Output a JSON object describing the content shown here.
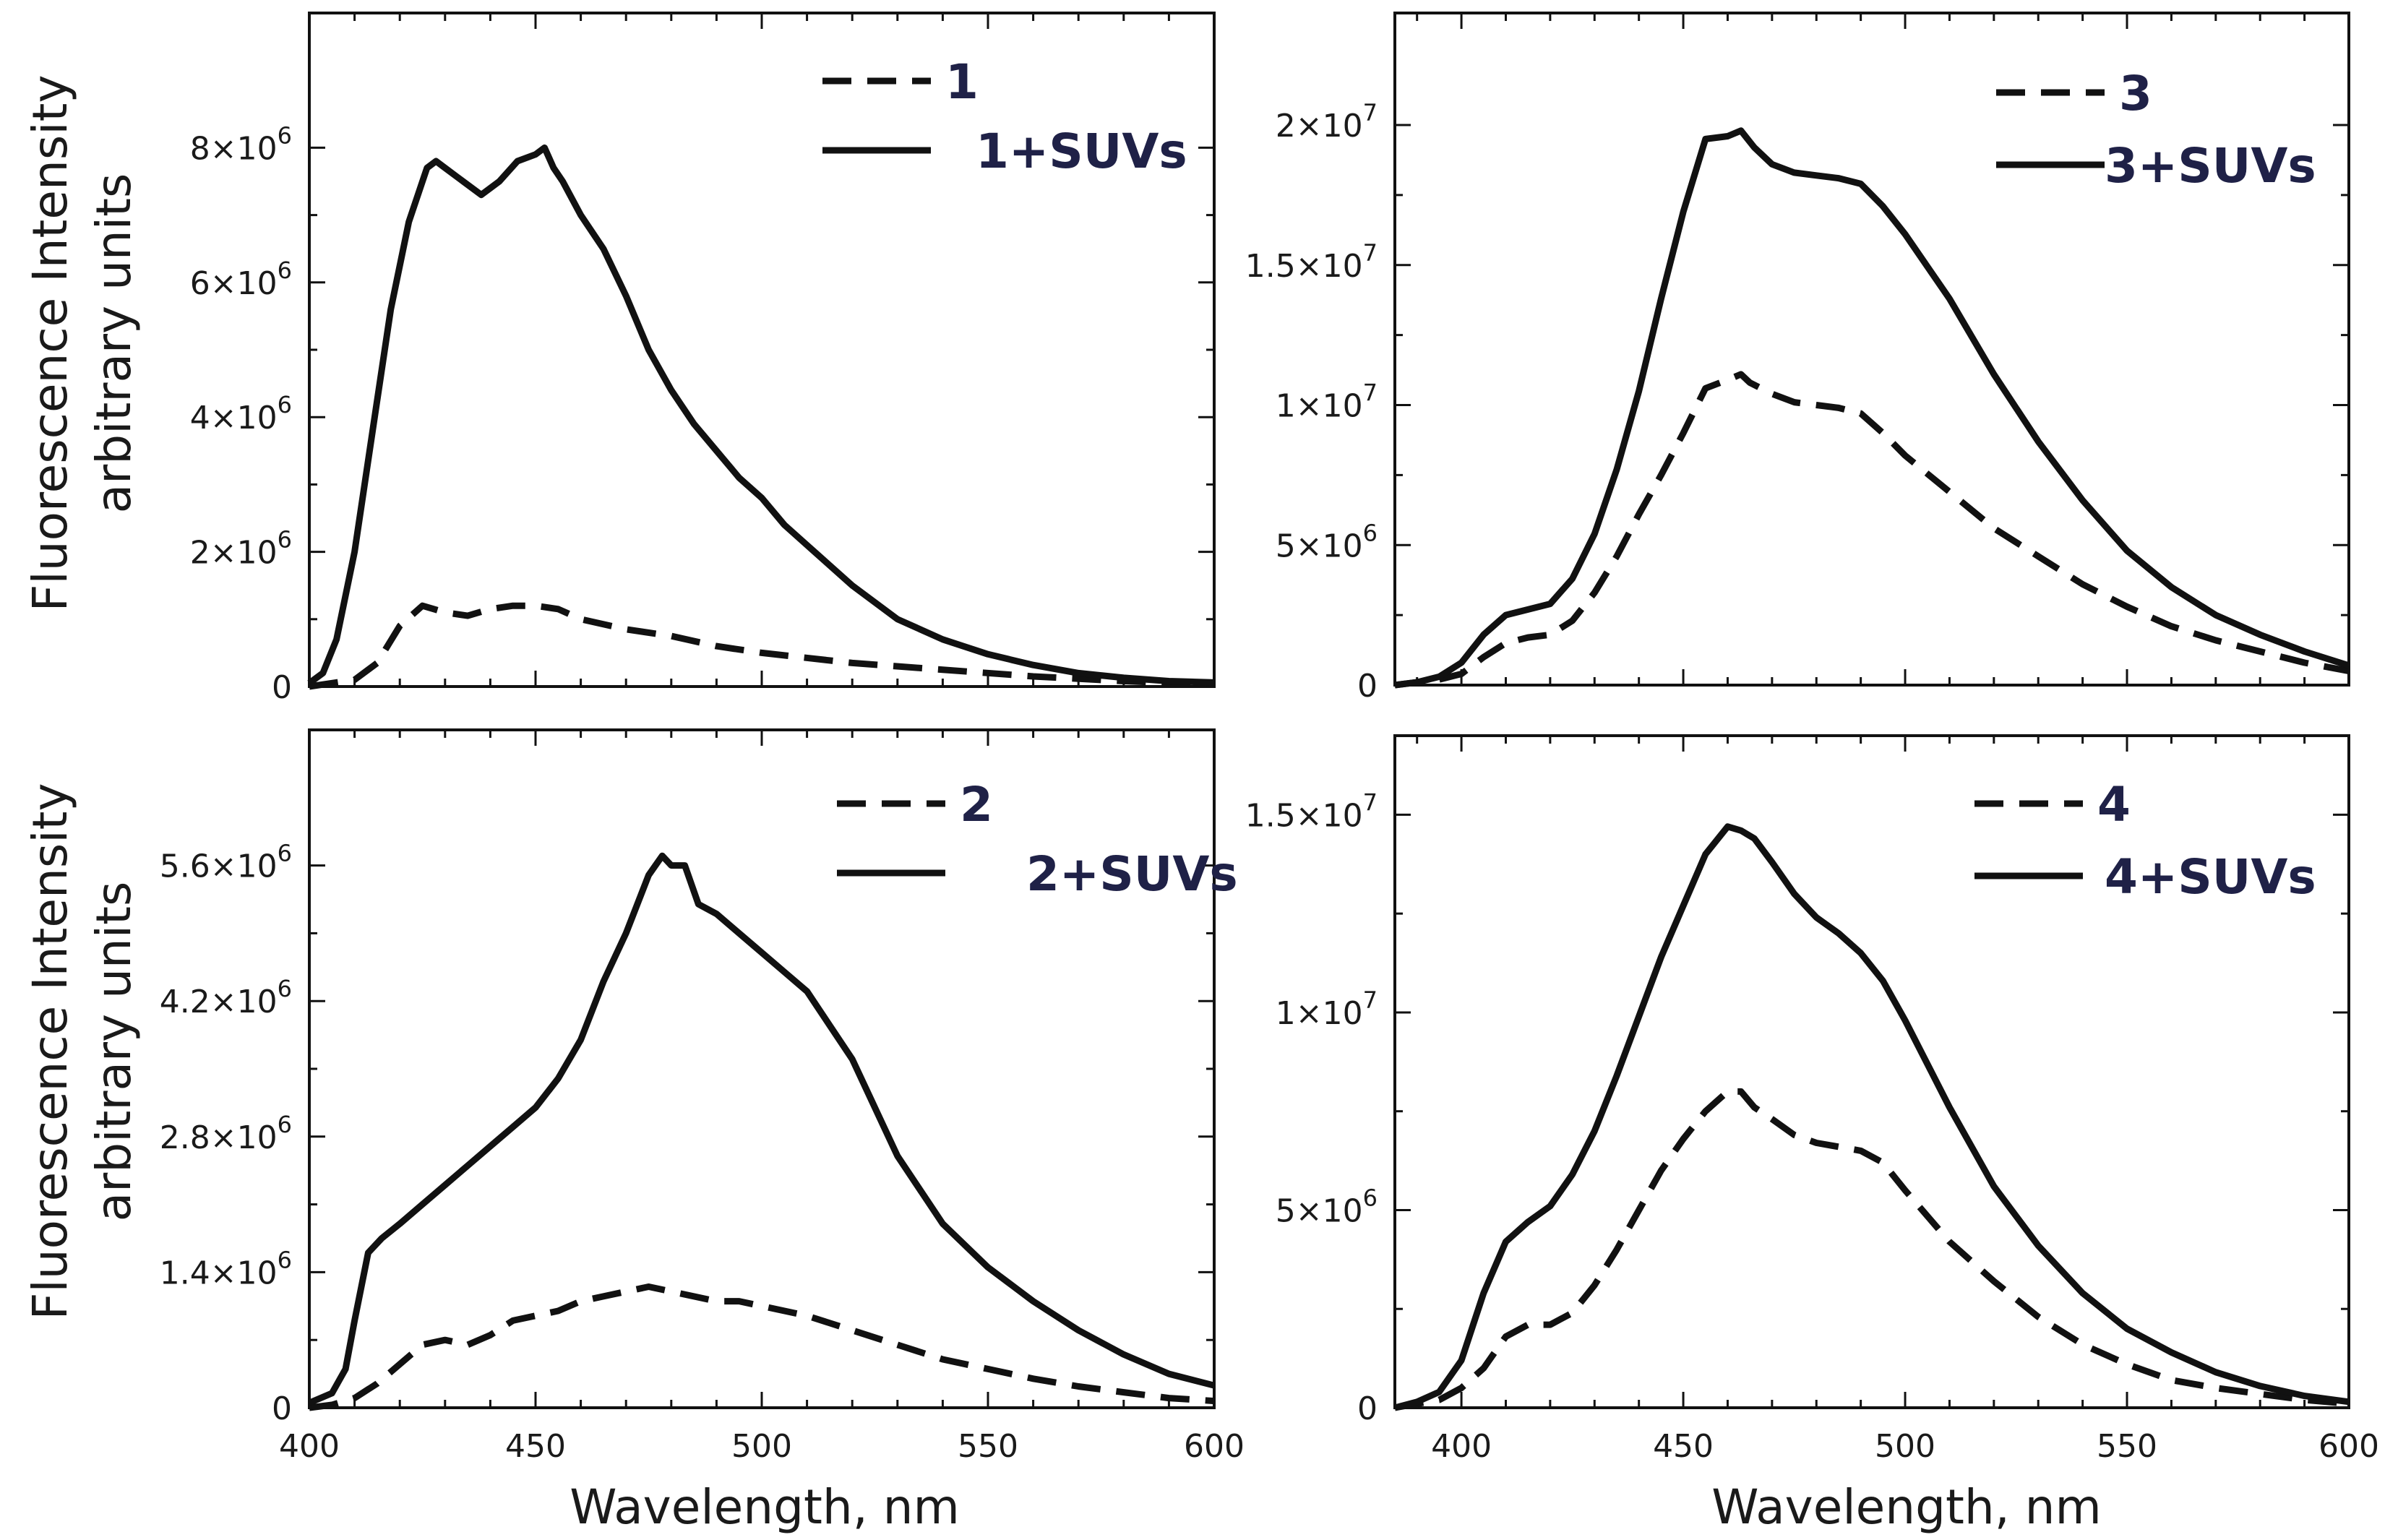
{
  "shared_x_label": "Wavelength, nm",
  "y_label_lines": [
    "Fluorescence Intensity",
    "arbitrary units"
  ],
  "chart_data": [
    {
      "type": "line",
      "panel": "top-left",
      "xlim": [
        400,
        600
      ],
      "ylim": [
        0,
        10000000
      ],
      "x_ticks": [
        400,
        450,
        500,
        550,
        600
      ],
      "y_ticks": [
        {
          "value": 0,
          "mant": "0",
          "exp": ""
        },
        {
          "value": 2000000,
          "mant": "2×10",
          "exp": "6"
        },
        {
          "value": 4000000,
          "mant": "4×10",
          "exp": "6"
        },
        {
          "value": 6000000,
          "mant": "6×10",
          "exp": "6"
        },
        {
          "value": 8000000,
          "mant": "8×10",
          "exp": "6"
        }
      ],
      "series": [
        {
          "name": "1",
          "style": "dashed",
          "x": [
            400,
            405,
            410,
            415,
            420,
            425,
            430,
            435,
            440,
            445,
            450,
            455,
            460,
            470,
            480,
            490,
            500,
            520,
            540,
            560,
            580,
            600
          ],
          "y": [
            0,
            50000,
            100000,
            350000,
            900000,
            1200000,
            1100000,
            1050000,
            1150000,
            1200000,
            1200000,
            1150000,
            1000000,
            850000,
            750000,
            600000,
            500000,
            350000,
            250000,
            150000,
            80000,
            30000
          ]
        },
        {
          "name": "1+SUVs",
          "style": "solid",
          "x": [
            400,
            403,
            406,
            410,
            414,
            418,
            422,
            426,
            428,
            430,
            434,
            438,
            442,
            446,
            450,
            452,
            454,
            456,
            460,
            465,
            470,
            475,
            480,
            485,
            490,
            495,
            500,
            505,
            510,
            520,
            530,
            540,
            550,
            560,
            570,
            580,
            590,
            600
          ],
          "y": [
            50000,
            200000,
            700000,
            2000000,
            3800000,
            5600000,
            6900000,
            7700000,
            7800000,
            7700000,
            7500000,
            7300000,
            7500000,
            7800000,
            7900000,
            8000000,
            7700000,
            7500000,
            7000000,
            6500000,
            5800000,
            5000000,
            4400000,
            3900000,
            3500000,
            3100000,
            2800000,
            2400000,
            2100000,
            1500000,
            1000000,
            700000,
            480000,
            320000,
            200000,
            130000,
            80000,
            60000
          ]
        }
      ],
      "legend": {
        "placement": "top-right"
      }
    },
    {
      "type": "line",
      "panel": "top-right",
      "xlim": [
        385,
        600
      ],
      "ylim": [
        0,
        24000000
      ],
      "x_ticks": [
        400,
        450,
        500,
        550,
        600
      ],
      "y_ticks": [
        {
          "value": 0,
          "mant": "0",
          "exp": ""
        },
        {
          "value": 5000000,
          "mant": "5×10",
          "exp": "6"
        },
        {
          "value": 10000000,
          "mant": "1×10",
          "exp": "7"
        },
        {
          "value": 15000000,
          "mant": "1.5×10",
          "exp": "7"
        },
        {
          "value": 20000000,
          "mant": "2×10",
          "exp": "7"
        }
      ],
      "series": [
        {
          "name": "3",
          "style": "dashed",
          "x": [
            385,
            390,
            395,
            400,
            405,
            410,
            415,
            420,
            425,
            430,
            435,
            440,
            445,
            450,
            455,
            460,
            463,
            465,
            470,
            475,
            480,
            485,
            490,
            495,
            500,
            510,
            520,
            530,
            540,
            550,
            560,
            570,
            580,
            590,
            600
          ],
          "y": [
            0,
            100000,
            200000,
            400000,
            1000000,
            1500000,
            1700000,
            1800000,
            2300000,
            3300000,
            4600000,
            6100000,
            7500000,
            9000000,
            10600000,
            10900000,
            11100000,
            10800000,
            10400000,
            10100000,
            10000000,
            9900000,
            9700000,
            9000000,
            8200000,
            6900000,
            5600000,
            4600000,
            3600000,
            2800000,
            2100000,
            1600000,
            1200000,
            800000,
            500000
          ]
        },
        {
          "name": "3+SUVs",
          "style": "solid",
          "x": [
            385,
            390,
            395,
            400,
            405,
            410,
            415,
            420,
            425,
            430,
            435,
            440,
            445,
            450,
            455,
            460,
            463,
            466,
            470,
            475,
            480,
            485,
            490,
            495,
            500,
            510,
            520,
            530,
            540,
            550,
            560,
            570,
            580,
            590,
            600
          ],
          "y": [
            0,
            100000,
            300000,
            800000,
            1800000,
            2500000,
            2700000,
            2900000,
            3800000,
            5400000,
            7700000,
            10500000,
            13800000,
            16900000,
            19500000,
            19600000,
            19800000,
            19200000,
            18600000,
            18300000,
            18200000,
            18100000,
            17900000,
            17100000,
            16100000,
            13800000,
            11100000,
            8700000,
            6600000,
            4800000,
            3500000,
            2500000,
            1800000,
            1200000,
            700000
          ]
        }
      ],
      "legend": {
        "placement": "top-right"
      }
    },
    {
      "type": "line",
      "panel": "bottom-left",
      "xlim": [
        400,
        600
      ],
      "ylim": [
        0,
        7000000
      ],
      "x_ticks": [
        400,
        450,
        500,
        550,
        600
      ],
      "y_ticks": [
        {
          "value": 0,
          "mant": "0",
          "exp": ""
        },
        {
          "value": 1400000,
          "mant": "1.4×10",
          "exp": "6"
        },
        {
          "value": 2800000,
          "mant": "2.8×10",
          "exp": "6"
        },
        {
          "value": 4200000,
          "mant": "4.2×10",
          "exp": "6"
        },
        {
          "value": 5600000,
          "mant": "5.6×10",
          "exp": "6"
        }
      ],
      "series": [
        {
          "name": "2",
          "style": "dashed",
          "x": [
            400,
            405,
            410,
            415,
            420,
            425,
            430,
            435,
            440,
            445,
            450,
            455,
            460,
            465,
            470,
            475,
            480,
            485,
            490,
            495,
            500,
            510,
            520,
            530,
            540,
            550,
            560,
            570,
            580,
            590,
            600
          ],
          "y": [
            0,
            30000,
            100000,
            250000,
            450000,
            650000,
            700000,
            650000,
            750000,
            900000,
            950000,
            1000000,
            1100000,
            1150000,
            1200000,
            1250000,
            1200000,
            1150000,
            1100000,
            1100000,
            1050000,
            950000,
            800000,
            650000,
            500000,
            400000,
            300000,
            220000,
            160000,
            100000,
            70000
          ]
        },
        {
          "name": "2+SUVs",
          "style": "solid",
          "x": [
            400,
            405,
            408,
            410,
            413,
            416,
            420,
            425,
            430,
            435,
            440,
            445,
            450,
            455,
            460,
            465,
            470,
            475,
            478,
            480,
            483,
            486,
            490,
            495,
            500,
            505,
            510,
            515,
            520,
            525,
            530,
            540,
            550,
            560,
            570,
            580,
            590,
            600
          ],
          "y": [
            50000,
            150000,
            400000,
            900000,
            1600000,
            1750000,
            1900000,
            2100000,
            2300000,
            2500000,
            2700000,
            2900000,
            3100000,
            3400000,
            3800000,
            4400000,
            4900000,
            5500000,
            5700000,
            5600000,
            5600000,
            5200000,
            5100000,
            4900000,
            4700000,
            4500000,
            4300000,
            3950000,
            3600000,
            3100000,
            2600000,
            1900000,
            1450000,
            1100000,
            800000,
            550000,
            350000,
            230000
          ]
        }
      ],
      "legend": {
        "placement": "top-right"
      }
    },
    {
      "type": "line",
      "panel": "bottom-right",
      "xlim": [
        385,
        600
      ],
      "ylim": [
        0,
        17000000
      ],
      "x_ticks": [
        400,
        450,
        500,
        550,
        600
      ],
      "y_ticks": [
        {
          "value": 0,
          "mant": "0",
          "exp": ""
        },
        {
          "value": 5000000,
          "mant": "5×10",
          "exp": "6"
        },
        {
          "value": 10000000,
          "mant": "1×10",
          "exp": "7"
        },
        {
          "value": 15000000,
          "mant": "1.5×10",
          "exp": "7"
        }
      ],
      "series": [
        {
          "name": "4",
          "style": "dashed",
          "x": [
            385,
            390,
            395,
            400,
            405,
            410,
            415,
            420,
            425,
            430,
            435,
            440,
            445,
            450,
            455,
            460,
            463,
            466,
            470,
            475,
            480,
            485,
            490,
            495,
            500,
            510,
            520,
            530,
            540,
            550,
            560,
            570,
            580,
            590,
            600
          ],
          "y": [
            0,
            100000,
            200000,
            500000,
            1000000,
            1800000,
            2100000,
            2100000,
            2400000,
            3100000,
            4000000,
            5000000,
            6000000,
            6800000,
            7500000,
            8000000,
            8000000,
            7600000,
            7300000,
            6900000,
            6700000,
            6600000,
            6500000,
            6200000,
            5500000,
            4200000,
            3200000,
            2300000,
            1600000,
            1100000,
            700000,
            500000,
            350000,
            200000,
            100000
          ]
        },
        {
          "name": "4+SUVs",
          "style": "solid",
          "x": [
            385,
            390,
            395,
            400,
            405,
            410,
            415,
            420,
            425,
            430,
            435,
            440,
            445,
            450,
            455,
            460,
            463,
            466,
            470,
            475,
            480,
            485,
            490,
            495,
            500,
            510,
            520,
            530,
            540,
            550,
            560,
            570,
            580,
            590,
            600
          ],
          "y": [
            0,
            150000,
            400000,
            1200000,
            2900000,
            4200000,
            4700000,
            5100000,
            5900000,
            7000000,
            8400000,
            9900000,
            11400000,
            12700000,
            14000000,
            14700000,
            14600000,
            14400000,
            13800000,
            13000000,
            12400000,
            12000000,
            11500000,
            10800000,
            9800000,
            7600000,
            5600000,
            4100000,
            2900000,
            2000000,
            1400000,
            900000,
            550000,
            300000,
            150000
          ]
        }
      ],
      "legend": {
        "placement": "top-right"
      }
    }
  ]
}
